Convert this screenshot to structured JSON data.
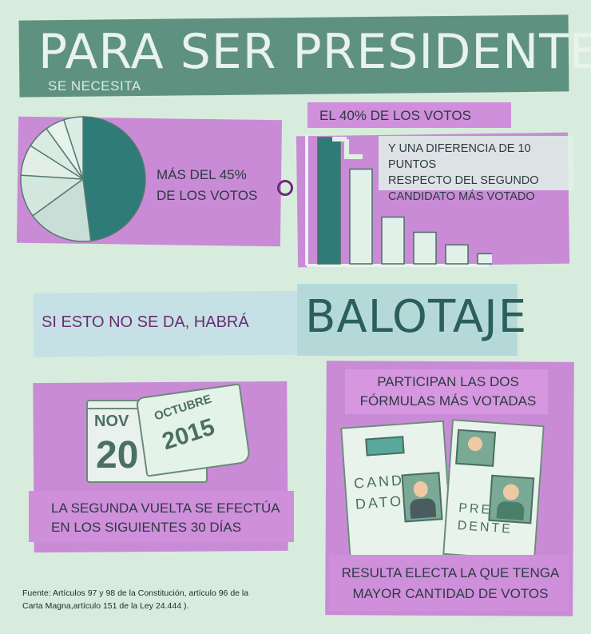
{
  "header": {
    "title": "PARA SER PRESIDENTE",
    "subtitle": "SE NECESITA"
  },
  "option_one": {
    "text_line1": "MÁS DEL 45%",
    "text_line2": "DE LOS VOTOS"
  },
  "connector": "O",
  "option_two": {
    "heading": "EL 40% DE LOS VOTOS",
    "note_line1": "Y UNA DIFERENCIA DE 10 PUNTOS",
    "note_line2": "RESPECTO DEL SEGUNDO",
    "note_line3": "CANDIDATO MÁS VOTADO"
  },
  "balotaje": {
    "lead": "SI ESTO NO SE DA, HABRÁ",
    "word": "BALOTAJE"
  },
  "calendar": {
    "card1_month": "NOV",
    "card1_year": "20",
    "card2_month": "OCTUBRE",
    "card2_year": "2015",
    "text_line1": "LA SEGUNDA VUELTA SE EFECTÚA",
    "text_line2": "EN LOS SIGUIENTES 30 DÍAS"
  },
  "candidates": {
    "heading_line1": "PARTICIPAN LAS DOS",
    "heading_line2": "FÓRMULAS MÁS VOTADAS",
    "card1_line1": "CANDI",
    "card1_line2": "DATO",
    "card2_line1": "PRESi",
    "card2_line2": "DENTE",
    "result_line1": "RESULTA ELECTA LA QUE TENGA",
    "result_line2": "MAYOR CANTIDAD DE VOTOS"
  },
  "footer": {
    "source_line1": "Fuente: Artículos 97 y 98 de la Constitución, artículo 96 de la",
    "source_line2": "Carta Magna,artículo 151 de la Ley 24.444 )."
  },
  "colors": {
    "background": "#d8ecde",
    "header_band": "#5f9181",
    "purple_block": "#c98bd6",
    "teal_dark": "#2f7b78",
    "mint_light": "#e1f1e6"
  },
  "pie_shares": [
    0.48,
    0.17,
    0.11,
    0.08,
    0.06,
    0.05,
    0.05
  ],
  "bar_levels": [
    1.0,
    0.75,
    0.37,
    0.25,
    0.15,
    0.08,
    0.05
  ]
}
